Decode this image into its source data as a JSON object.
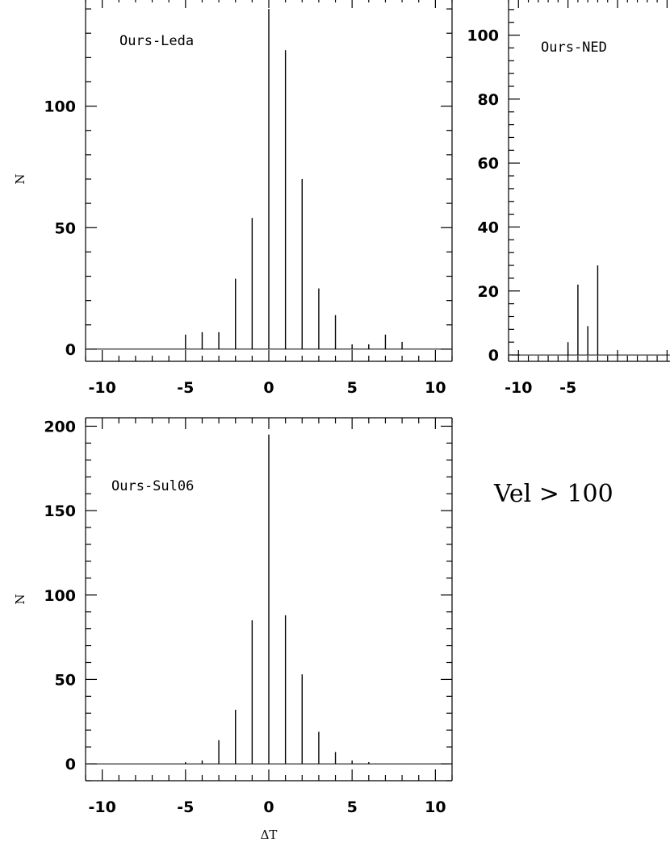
{
  "chart_data": [
    {
      "type": "bar",
      "panel_label": "Ours-Leda",
      "xlabel": "",
      "ylabel": "N",
      "xlim": [
        -11,
        11
      ],
      "ylim": [
        -5,
        145
      ],
      "xticks": [
        -10,
        -5,
        0,
        5,
        10
      ],
      "yticks": [
        0,
        50,
        100
      ],
      "x": [
        -10,
        -9,
        -8,
        -7,
        -6,
        -5,
        -4,
        -3,
        -2,
        -1,
        0,
        1,
        2,
        3,
        4,
        5,
        6,
        7,
        8,
        9,
        10
      ],
      "values": [
        0,
        0,
        0,
        0,
        0,
        6,
        7,
        7,
        29,
        54,
        140,
        123,
        70,
        25,
        14,
        2,
        2,
        6,
        3,
        0,
        0
      ]
    },
    {
      "type": "bar",
      "panel_label": "Ours-NED",
      "xlabel": "",
      "ylabel": "",
      "xlim": [
        -11,
        11
      ],
      "ylim": [
        -2,
        112
      ],
      "xticks": [
        -10,
        -5
      ],
      "yticks": [
        0,
        20,
        40,
        60,
        80,
        100
      ],
      "x": [
        -10,
        -9,
        -8,
        -7,
        -6,
        -5,
        -4,
        -3,
        -2
      ],
      "values": [
        0,
        0,
        0,
        0,
        0,
        4,
        22,
        9,
        28
      ]
    },
    {
      "type": "bar",
      "panel_label": "Ours-Sul06",
      "xlabel": "ΔT",
      "ylabel": "N",
      "xlim": [
        -11,
        11
      ],
      "ylim": [
        -10,
        205
      ],
      "xticks": [
        -10,
        -5,
        0,
        5,
        10
      ],
      "yticks": [
        0,
        50,
        100,
        150,
        200
      ],
      "x": [
        -10,
        -9,
        -8,
        -7,
        -6,
        -5,
        -4,
        -3,
        -2,
        -1,
        0,
        1,
        2,
        3,
        4,
        5,
        6,
        7,
        8,
        9,
        10
      ],
      "values": [
        0,
        0,
        0,
        0,
        0,
        1,
        2,
        14,
        32,
        85,
        195,
        88,
        53,
        19,
        7,
        2,
        1,
        0,
        0,
        0,
        0
      ]
    }
  ],
  "note_text": "Vel > 100"
}
